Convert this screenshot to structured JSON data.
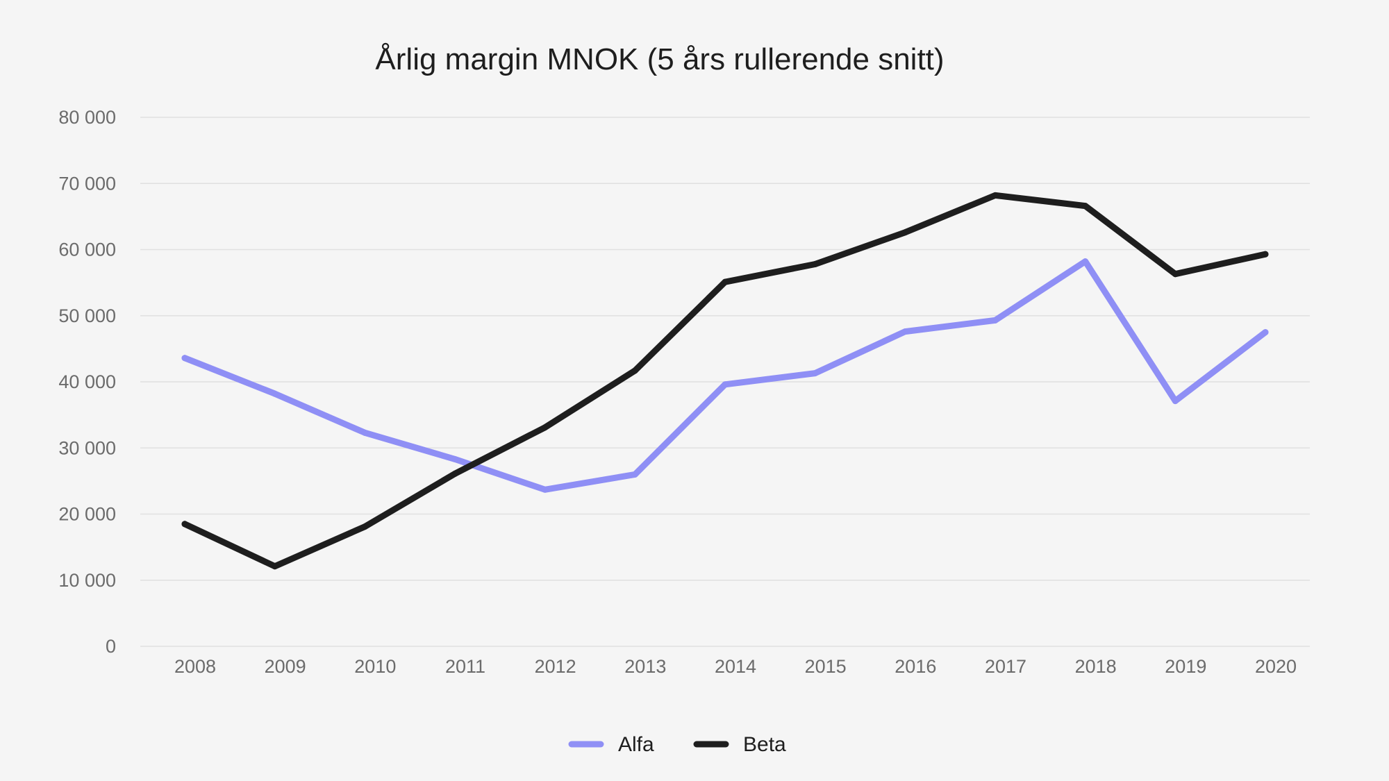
{
  "chart_data": {
    "type": "line",
    "title": "Årlig margin MNOK (5 års rullerende snitt)",
    "xlabel": "",
    "ylabel": "",
    "categories": [
      "2008",
      "2009",
      "2010",
      "2011",
      "2012",
      "2013",
      "2014",
      "2015",
      "2016",
      "2017",
      "2018",
      "2019",
      "2020"
    ],
    "ylim": [
      0,
      80000
    ],
    "yticks": [
      0,
      10000,
      20000,
      30000,
      40000,
      50000,
      60000,
      70000,
      80000
    ],
    "ytick_labels": [
      "0",
      "10 000",
      "20 000",
      "30 000",
      "40 000",
      "50 000",
      "60 000",
      "70 000",
      "80 000"
    ],
    "grid": true,
    "legend_position": "bottom-center",
    "series": [
      {
        "name": "Alfa",
        "color": "#8f8ff5",
        "values": [
          43600,
          38200,
          32300,
          28300,
          23700,
          26000,
          39600,
          41300,
          47600,
          49300,
          58200,
          37100,
          47500
        ]
      },
      {
        "name": "Beta",
        "color": "#1e1e1e",
        "values": [
          18500,
          12100,
          18100,
          26100,
          33100,
          41700,
          55100,
          57800,
          62600,
          68200,
          66600,
          56300,
          59300
        ]
      }
    ]
  }
}
